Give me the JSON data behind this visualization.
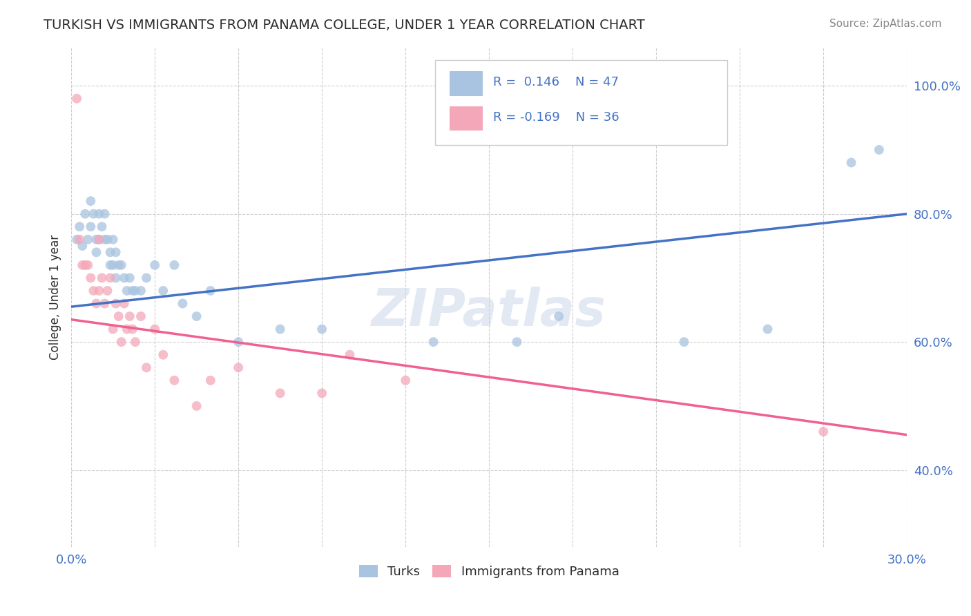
{
  "title": "TURKISH VS IMMIGRANTS FROM PANAMA COLLEGE, UNDER 1 YEAR CORRELATION CHART",
  "source": "Source: ZipAtlas.com",
  "ylabel_label": "College, Under 1 year",
  "xlim": [
    0.0,
    0.3
  ],
  "ylim": [
    0.28,
    1.06
  ],
  "x_ticks": [
    0.0,
    0.03,
    0.06,
    0.09,
    0.12,
    0.15,
    0.18,
    0.21,
    0.24,
    0.27,
    0.3
  ],
  "x_tick_labels": [
    "0.0%",
    "",
    "",
    "",
    "",
    "",
    "",
    "",
    "",
    "",
    "30.0%"
  ],
  "y_ticks": [
    0.4,
    0.6,
    0.8,
    1.0
  ],
  "y_tick_labels": [
    "40.0%",
    "60.0%",
    "80.0%",
    "100.0%"
  ],
  "R_turks": 0.146,
  "N_turks": 47,
  "R_panama": -0.169,
  "N_panama": 36,
  "color_turks": "#a8c4e0",
  "color_panama": "#f4a7b9",
  "line_color_turks": "#4472c4",
  "line_color_panama": "#f06090",
  "background_color": "#ffffff",
  "grid_color": "#c8c8c8",
  "title_color": "#2c2c2c",
  "label_color": "#2c2c2c",
  "tick_color": "#4472c4",
  "legend_R_color": "#4472c4",
  "turks_x": [
    0.002,
    0.003,
    0.004,
    0.005,
    0.006,
    0.007,
    0.007,
    0.008,
    0.009,
    0.009,
    0.01,
    0.01,
    0.011,
    0.012,
    0.012,
    0.013,
    0.014,
    0.014,
    0.015,
    0.015,
    0.016,
    0.016,
    0.017,
    0.018,
    0.019,
    0.02,
    0.021,
    0.022,
    0.023,
    0.025,
    0.027,
    0.03,
    0.033,
    0.037,
    0.04,
    0.045,
    0.05,
    0.06,
    0.075,
    0.09,
    0.13,
    0.16,
    0.175,
    0.22,
    0.25,
    0.28,
    0.29
  ],
  "turks_y": [
    0.76,
    0.78,
    0.75,
    0.8,
    0.76,
    0.82,
    0.78,
    0.8,
    0.74,
    0.76,
    0.76,
    0.8,
    0.78,
    0.76,
    0.8,
    0.76,
    0.72,
    0.74,
    0.76,
    0.72,
    0.74,
    0.7,
    0.72,
    0.72,
    0.7,
    0.68,
    0.7,
    0.68,
    0.68,
    0.68,
    0.7,
    0.72,
    0.68,
    0.72,
    0.66,
    0.64,
    0.68,
    0.6,
    0.62,
    0.62,
    0.6,
    0.6,
    0.64,
    0.6,
    0.62,
    0.88,
    0.9
  ],
  "panama_x": [
    0.002,
    0.003,
    0.004,
    0.005,
    0.006,
    0.007,
    0.008,
    0.009,
    0.01,
    0.01,
    0.011,
    0.012,
    0.013,
    0.014,
    0.015,
    0.016,
    0.017,
    0.018,
    0.019,
    0.02,
    0.021,
    0.022,
    0.023,
    0.025,
    0.027,
    0.03,
    0.033,
    0.037,
    0.045,
    0.05,
    0.06,
    0.075,
    0.09,
    0.1,
    0.12,
    0.27
  ],
  "panama_y": [
    0.98,
    0.76,
    0.72,
    0.72,
    0.72,
    0.7,
    0.68,
    0.66,
    0.76,
    0.68,
    0.7,
    0.66,
    0.68,
    0.7,
    0.62,
    0.66,
    0.64,
    0.6,
    0.66,
    0.62,
    0.64,
    0.62,
    0.6,
    0.64,
    0.56,
    0.62,
    0.58,
    0.54,
    0.5,
    0.54,
    0.56,
    0.52,
    0.52,
    0.58,
    0.54,
    0.46
  ],
  "blue_line_x0": 0.0,
  "blue_line_y0": 0.655,
  "blue_line_x1": 0.3,
  "blue_line_y1": 0.8,
  "pink_line_x0": 0.0,
  "pink_line_y0": 0.635,
  "pink_line_x1": 0.3,
  "pink_line_y1": 0.455
}
